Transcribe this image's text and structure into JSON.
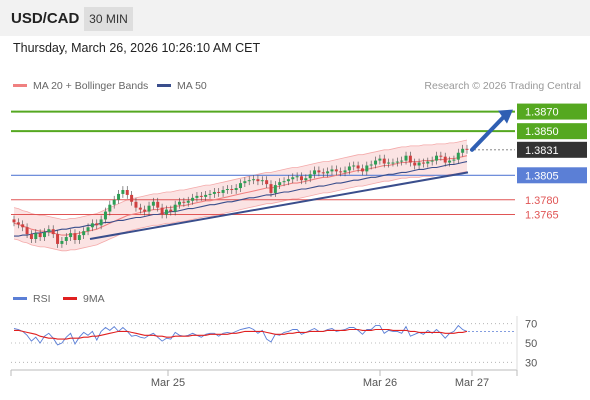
{
  "header": {
    "pair": "USD/CAD",
    "timeframe": "30 MIN"
  },
  "datetime": "Thursday, March 26, 2026 10:26:10 AM CET",
  "legend": {
    "ma20": "MA 20 + Bollinger Bands",
    "ma50": "MA 50",
    "credit": "Research © 2026 Trading Central"
  },
  "rsi_legend": {
    "rsi": "RSI",
    "ma9": "9MA"
  },
  "colors": {
    "ma20": "#f08080",
    "ma50": "#3a4e8c",
    "support": "#5b7fd6",
    "resistance": "#55a820",
    "red_level": "#e05555",
    "bull": "#2e9e55",
    "bear": "#d04040",
    "rsi": "#5b7fd6",
    "rsi_ma": "#e02020",
    "arrow": "#2f5fb3",
    "last_price": "#333333",
    "band_fill": "#f8cccc"
  },
  "chart_data": [
    {
      "type": "line",
      "title": "USD/CAD",
      "timeframe": "30 MIN",
      "x_ticks": [
        "Mar 25",
        "Mar 26",
        "Mar 27"
      ],
      "ylim": [
        1.3688,
        1.3892
      ],
      "last_price": 1.3831,
      "levels": [
        {
          "value": 1.387,
          "label": "1.3870",
          "kind": "resistance"
        },
        {
          "value": 1.385,
          "label": "1.3850",
          "kind": "resistance"
        },
        {
          "value": 1.3831,
          "label": "1.3831",
          "kind": "last"
        },
        {
          "value": 1.3805,
          "label": "1.3805",
          "kind": "support"
        },
        {
          "value": 1.378,
          "label": "1.3780",
          "kind": "minor"
        },
        {
          "value": 1.3765,
          "label": "1.3765",
          "kind": "minor"
        }
      ],
      "close": [
        1.3757,
        1.3755,
        1.3752,
        1.3745,
        1.374,
        1.3746,
        1.3742,
        1.3747,
        1.375,
        1.3745,
        1.3735,
        1.3738,
        1.3742,
        1.3746,
        1.3739,
        1.3744,
        1.3748,
        1.3752,
        1.3756,
        1.3754,
        1.376,
        1.3768,
        1.3775,
        1.378,
        1.3786,
        1.379,
        1.3785,
        1.3778,
        1.3772,
        1.377,
        1.3768,
        1.3774,
        1.3778,
        1.3772,
        1.3765,
        1.377,
        1.3768,
        1.3775,
        1.3778,
        1.3777,
        1.3779,
        1.3782,
        1.3784,
        1.3783,
        1.3785,
        1.3786,
        1.3788,
        1.3787,
        1.379,
        1.3791,
        1.379,
        1.3792,
        1.3797,
        1.3799,
        1.38,
        1.3801,
        1.3799,
        1.38,
        1.3796,
        1.3787,
        1.3795,
        1.3798,
        1.3799,
        1.3801,
        1.3803,
        1.3804,
        1.38,
        1.3802,
        1.3806,
        1.381,
        1.3808,
        1.3807,
        1.3809,
        1.3811,
        1.3809,
        1.3808,
        1.381,
        1.3814,
        1.3815,
        1.3812,
        1.3809,
        1.3815,
        1.3816,
        1.382,
        1.3822,
        1.3817,
        1.3818,
        1.3818,
        1.3819,
        1.382,
        1.3825,
        1.3818,
        1.3815,
        1.3818,
        1.3817,
        1.3819,
        1.382,
        1.3825,
        1.3824,
        1.3818,
        1.382,
        1.3821,
        1.3828,
        1.3832,
        1.3831
      ],
      "ma20": [
        1.3756,
        1.3755,
        1.3753,
        1.3752,
        1.375,
        1.3749,
        1.3748,
        1.3748,
        1.3747,
        1.3746,
        1.3745,
        1.3744,
        1.3744,
        1.3745,
        1.3745,
        1.3746,
        1.3747,
        1.3748,
        1.3749,
        1.375,
        1.3752,
        1.3754,
        1.3756,
        1.3758,
        1.376,
        1.3762,
        1.3764,
        1.3765,
        1.3766,
        1.3767,
        1.3768,
        1.3769,
        1.377,
        1.377,
        1.3771,
        1.3772,
        1.3772,
        1.3773,
        1.3774,
        1.3774,
        1.3775,
        1.3776,
        1.3777,
        1.3778,
        1.3779,
        1.3779,
        1.378,
        1.3781,
        1.3782,
        1.3783,
        1.3784,
        1.3785,
        1.3786,
        1.3787,
        1.3788,
        1.3789,
        1.379,
        1.3791,
        1.3792,
        1.3792,
        1.3793,
        1.3794,
        1.3795,
        1.3796,
        1.3797,
        1.3797,
        1.3798,
        1.3799,
        1.38,
        1.3801,
        1.3802,
        1.3803,
        1.3803,
        1.3804,
        1.3805,
        1.3806,
        1.3807,
        1.3808,
        1.3809,
        1.381,
        1.381,
        1.3811,
        1.3812,
        1.3813,
        1.3814,
        1.3815,
        1.3815,
        1.3816,
        1.3817,
        1.3818,
        1.3818,
        1.3819,
        1.3819,
        1.3819,
        1.382,
        1.382,
        1.382,
        1.3821,
        1.3821,
        1.3821,
        1.3822,
        1.3822,
        1.3823,
        1.3824,
        1.3825
      ],
      "ma50": [
        1.3743,
        1.3743,
        1.3744,
        1.3744,
        1.3745,
        1.3746,
        1.3746,
        1.3747,
        1.3748,
        1.3748,
        1.3749,
        1.375,
        1.375,
        1.3751,
        1.3752,
        1.3752,
        1.3753,
        1.3754,
        1.3754,
        1.3755,
        1.3756,
        1.3757,
        1.3757,
        1.3758,
        1.3759,
        1.3759,
        1.376,
        1.3761,
        1.3762,
        1.3762,
        1.3763,
        1.3764,
        1.3765,
        1.3765,
        1.3766,
        1.3767,
        1.3768,
        1.3768,
        1.3769,
        1.377,
        1.3771,
        1.3771,
        1.3772,
        1.3773,
        1.3774,
        1.3775,
        1.3775,
        1.3776,
        1.3777,
        1.3778,
        1.3778,
        1.3779,
        1.378,
        1.3781,
        1.3782,
        1.3782,
        1.3783,
        1.3784,
        1.3785,
        1.3785,
        1.3786,
        1.3787,
        1.3788,
        1.3788,
        1.3789,
        1.379,
        1.3791,
        1.3791,
        1.3792,
        1.3793,
        1.3794,
        1.3794,
        1.3795,
        1.3796,
        1.3797,
        1.3797,
        1.3798,
        1.3799,
        1.38,
        1.38,
        1.3801,
        1.3802,
        1.3803,
        1.3803,
        1.3804,
        1.3805,
        1.3806,
        1.3806,
        1.3807,
        1.3808,
        1.3808,
        1.3809,
        1.381,
        1.3811,
        1.3811,
        1.3812,
        1.3813,
        1.3813,
        1.3814,
        1.3815,
        1.3816,
        1.3816,
        1.3817,
        1.3818,
        1.3819
      ],
      "trendline": {
        "start": 1.374,
        "end": 1.3808
      },
      "target": 1.387
    },
    {
      "type": "line",
      "title": "RSI",
      "ylim": [
        20,
        80
      ],
      "y_ticks": [
        70,
        50,
        30
      ],
      "rsi": [
        65,
        64,
        62,
        58,
        52,
        56,
        50,
        57,
        60,
        55,
        48,
        50,
        56,
        60,
        49,
        56,
        61,
        58,
        62,
        53,
        62,
        66,
        63,
        67,
        62,
        66,
        62,
        57,
        58,
        56,
        55,
        58,
        60,
        56,
        52,
        55,
        54,
        61,
        58,
        57,
        58,
        60,
        58,
        56,
        59,
        60,
        60,
        57,
        60,
        61,
        60,
        62,
        64,
        65,
        66,
        64,
        60,
        63,
        54,
        51,
        59,
        58,
        61,
        62,
        64,
        64,
        59,
        61,
        63,
        65,
        62,
        62,
        64,
        65,
        62,
        63,
        64,
        66,
        66,
        63,
        59,
        64,
        64,
        68,
        68,
        60,
        63,
        62,
        62,
        60,
        67,
        57,
        59,
        61,
        59,
        63,
        60,
        64,
        60,
        55,
        60,
        62,
        68,
        64,
        62
      ],
      "rsi_ma": [
        63,
        63,
        62,
        61,
        60,
        59,
        57,
        56,
        55,
        55,
        54,
        54,
        54,
        55,
        55,
        55,
        56,
        56,
        57,
        57,
        58,
        59,
        60,
        61,
        62,
        62,
        62,
        61,
        60,
        59,
        58,
        58,
        58,
        57,
        57,
        56,
        56,
        57,
        57,
        57,
        57,
        58,
        58,
        58,
        58,
        59,
        59,
        59,
        59,
        59,
        60,
        60,
        61,
        62,
        62,
        62,
        62,
        62,
        61,
        60,
        59,
        59,
        59,
        60,
        60,
        61,
        61,
        61,
        62,
        62,
        62,
        62,
        63,
        63,
        63,
        63,
        63,
        64,
        64,
        64,
        63,
        63,
        63,
        64,
        64,
        64,
        64,
        63,
        63,
        63,
        63,
        62,
        62,
        61,
        61,
        61,
        61,
        61,
        61,
        60,
        60,
        60,
        61,
        61,
        62
      ]
    }
  ]
}
